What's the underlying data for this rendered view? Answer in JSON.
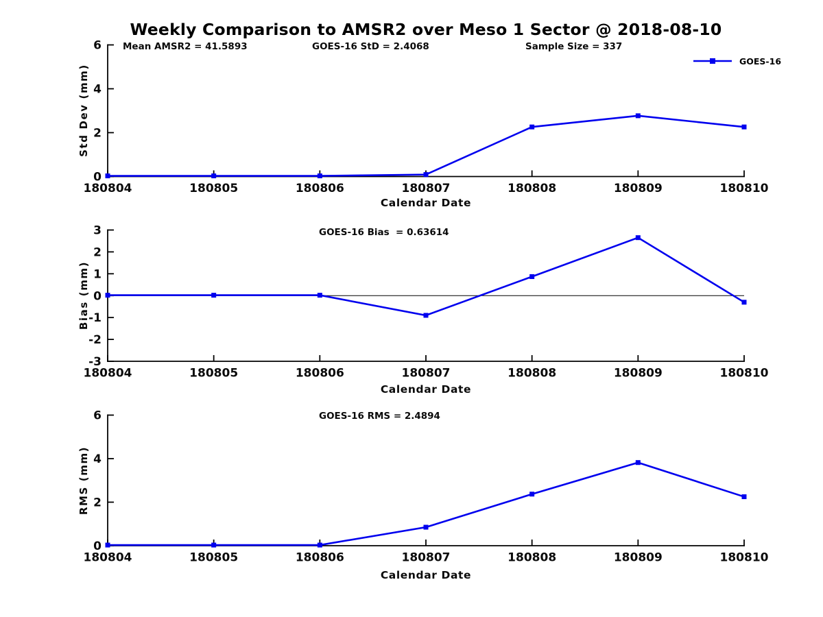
{
  "page": {
    "title": "Weekly Comparison to AMSR2 over Meso 1 Sector @ 2018-08-10",
    "background": "#ffffff"
  },
  "colors": {
    "series_blue": "#0000EE",
    "axis": "#000000",
    "tick_text": "#0a0a0a",
    "zero_line": "#000000"
  },
  "legend": {
    "label": "GOES-16"
  },
  "chart_data": [
    {
      "type": "line",
      "name": "std-dev-chart",
      "title": "",
      "xlabel": "Calendar Date",
      "ylabel": "Std Dev (mm)",
      "categories": [
        "180804",
        "180805",
        "180806",
        "180807",
        "180808",
        "180809",
        "180810"
      ],
      "series": [
        {
          "name": "GOES-16",
          "color": "#0000EE",
          "marker": "square",
          "values": [
            0.03,
            0.03,
            0.03,
            0.09,
            2.26,
            2.77,
            2.26
          ]
        }
      ],
      "ylim": [
        0,
        6
      ],
      "yticks": [
        0,
        2,
        4,
        6
      ],
      "zero_line": false,
      "grid": false,
      "legend_position": "top-right",
      "annotations": [
        "Mean AMSR2 = 41.5893",
        "GOES-16 StD = 2.4068",
        "Sample Size = 337"
      ]
    },
    {
      "type": "line",
      "name": "bias-chart",
      "title": "",
      "xlabel": "Calendar Date",
      "ylabel": "Bias (mm)",
      "categories": [
        "180804",
        "180805",
        "180806",
        "180807",
        "180808",
        "180809",
        "180810"
      ],
      "series": [
        {
          "name": "GOES-16",
          "color": "#0000EE",
          "marker": "square",
          "values": [
            0.02,
            0.02,
            0.02,
            -0.9,
            0.87,
            2.65,
            -0.3
          ]
        }
      ],
      "ylim": [
        -3,
        3
      ],
      "yticks": [
        -3,
        -2,
        -1,
        0,
        1,
        2,
        3
      ],
      "zero_line": true,
      "grid": false,
      "legend_position": "none",
      "annotations": [
        "GOES-16 Bias  = 0.63614"
      ]
    },
    {
      "type": "line",
      "name": "rms-chart",
      "title": "",
      "xlabel": "Calendar Date",
      "ylabel": "RMS (mm)",
      "categories": [
        "180804",
        "180805",
        "180806",
        "180807",
        "180808",
        "180809",
        "180810"
      ],
      "series": [
        {
          "name": "GOES-16",
          "color": "#0000EE",
          "marker": "square",
          "values": [
            0.03,
            0.03,
            0.03,
            0.85,
            2.37,
            3.82,
            2.25
          ]
        }
      ],
      "ylim": [
        0,
        6
      ],
      "yticks": [
        0,
        2,
        4,
        6
      ],
      "zero_line": false,
      "grid": false,
      "legend_position": "none",
      "annotations": [
        "GOES-16 RMS = 2.4894"
      ]
    }
  ]
}
